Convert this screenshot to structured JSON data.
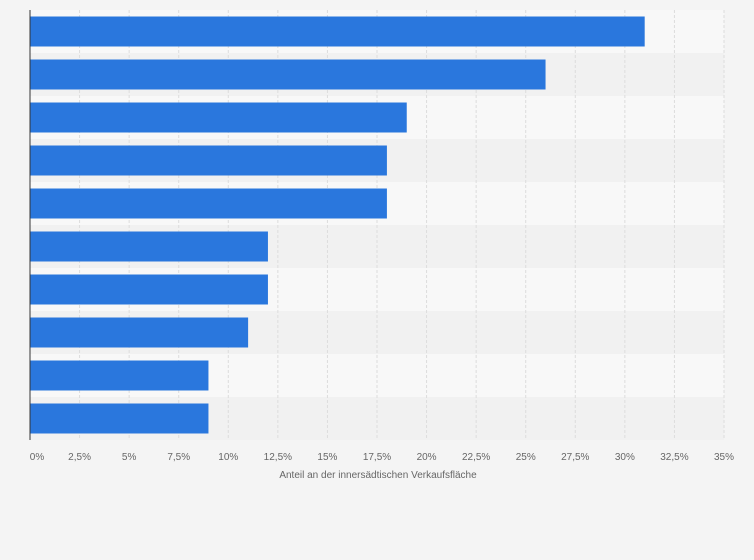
{
  "chart_data": {
    "type": "bar",
    "orientation": "horizontal",
    "categories": [
      "",
      "",
      "",
      "",
      "",
      "",
      "",
      "",
      "",
      ""
    ],
    "values": [
      31,
      26,
      19,
      18,
      18,
      12,
      12,
      11,
      9,
      9
    ],
    "xlabel": "Anteil an der innersädtischen Verkaufsfläche",
    "ylabel": "",
    "xlim": [
      0,
      35
    ],
    "x_ticks": [
      0,
      2.5,
      5,
      7.5,
      10,
      12.5,
      15,
      17.5,
      20,
      22.5,
      25,
      27.5,
      30,
      32.5,
      35
    ],
    "x_tick_labels": [
      "0%",
      "2,5%",
      "5%",
      "7,5%",
      "10%",
      "12,5%",
      "15%",
      "17,5%",
      "20%",
      "22,5%",
      "25%",
      "27,5%",
      "30%",
      "32,5%",
      "35%"
    ],
    "grid": true,
    "legend": "none",
    "colors": {
      "bar": "#2a77dd",
      "grid": "#dddddd",
      "axis": "#333333",
      "band_light": "#f8f8f8",
      "band_dark": "#f1f1f1",
      "text": "#666666"
    }
  }
}
